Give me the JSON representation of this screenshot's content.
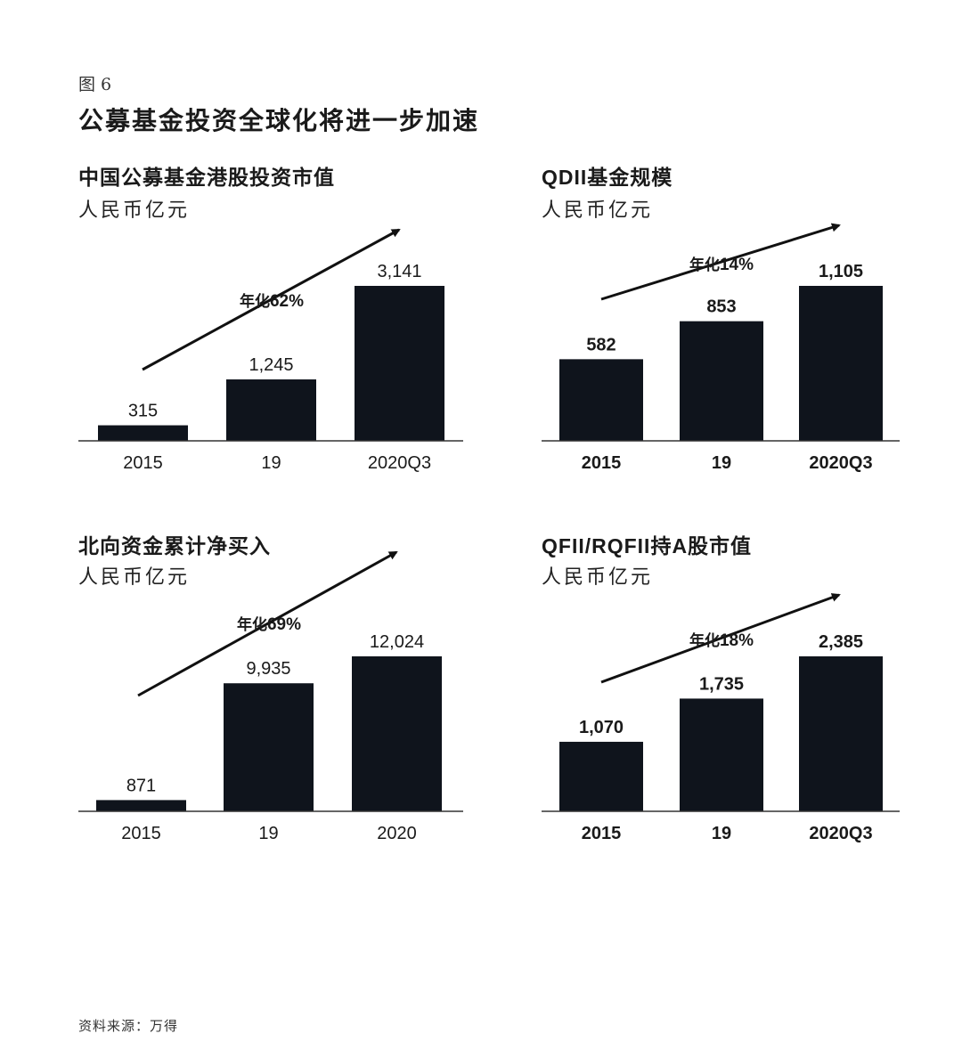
{
  "figure_label": "图 6",
  "title": "公募基金投资全球化将进一步加速",
  "source": "资料来源：万得",
  "colors": {
    "bar": "#0f141c",
    "text": "#1a1a1a"
  },
  "chart_data": [
    {
      "type": "bar",
      "title": "中国公募基金港股投资市值",
      "unit": "人民币亿元",
      "categories": [
        "2015",
        "19",
        "2020Q3"
      ],
      "values": [
        315,
        1245,
        3141
      ],
      "data_labels": [
        "315",
        "1,245",
        "3,141"
      ],
      "annotation": {
        "prefix": "年化",
        "value": "62%"
      }
    },
    {
      "type": "bar",
      "title": "QDII基金规模",
      "unit": "人民币亿元",
      "categories": [
        "2015",
        "19",
        "2020Q3"
      ],
      "values": [
        582,
        853,
        1105
      ],
      "data_labels": [
        "582",
        "853",
        "1,105"
      ],
      "annotation": {
        "prefix": "年化",
        "value": "14%"
      }
    },
    {
      "type": "bar",
      "title": "北向资金累计净买入",
      "unit": "人民币亿元",
      "categories": [
        "2015",
        "19",
        "2020"
      ],
      "values": [
        871,
        9935,
        12024
      ],
      "data_labels": [
        "871",
        "9,935",
        "12,024"
      ],
      "annotation": {
        "prefix": "年化",
        "value": "69%"
      }
    },
    {
      "type": "bar",
      "title": "QFII/RQFII持A股市值",
      "unit": "人民币亿元",
      "categories": [
        "2015",
        "19",
        "2020Q3"
      ],
      "values": [
        1070,
        1735,
        2385
      ],
      "data_labels": [
        "1,070",
        "1,735",
        "2,385"
      ],
      "annotation": {
        "prefix": "年化",
        "value": "18%"
      }
    }
  ]
}
